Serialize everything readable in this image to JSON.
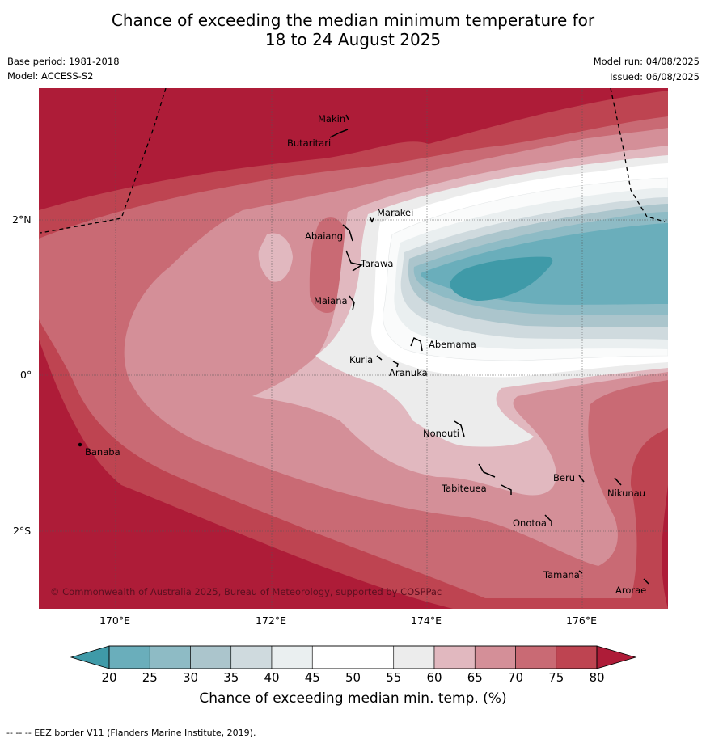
{
  "title": {
    "line1": "Chance of exceeding the median minimum temperature for",
    "line2": "18 to 24 August 2025"
  },
  "meta": {
    "base_period": "Base period: 1981-2018",
    "model": "Model: ACCESS-S2",
    "model_run": "Model run: 04/08/2025",
    "issued": "Issued: 06/08/2025"
  },
  "map": {
    "copyright": "© Commonwealth of Australia 2025, Bureau of Meteorology, supported by COSPPac",
    "lon_ticks": [
      "170°E",
      "172°E",
      "174°E",
      "176°E"
    ],
    "lat_ticks": [
      "2°N",
      "0°",
      "2°S"
    ],
    "places": [
      "Makin",
      "Butaritari",
      "Marakei",
      "Abaiang",
      "Tarawa",
      "Maiana",
      "Abemama",
      "Kuria",
      "Aranuka",
      "Nonouti",
      "Banaba",
      "Tabiteuea",
      "Beru",
      "Nikunau",
      "Onotoa",
      "Tamana",
      "Arorae"
    ]
  },
  "colorbar": {
    "ticks": [
      "20",
      "25",
      "30",
      "35",
      "40",
      "45",
      "50",
      "55",
      "60",
      "65",
      "70",
      "75",
      "80"
    ],
    "title": "Chance of exceeding median min. temp. (%)",
    "colors": [
      "#3f9aa8",
      "#6aaebb",
      "#8ebbc5",
      "#abc5cc",
      "#cfdade",
      "#eaeff0",
      "#ffffff",
      "#ffffff",
      "#ececec",
      "#e1b8bf",
      "#d48f98",
      "#c96a74",
      "#be4451",
      "#ae1c38"
    ]
  },
  "footnote": "--  --  -- EEZ border V11 (Flanders Marine Institute, 2019)."
}
